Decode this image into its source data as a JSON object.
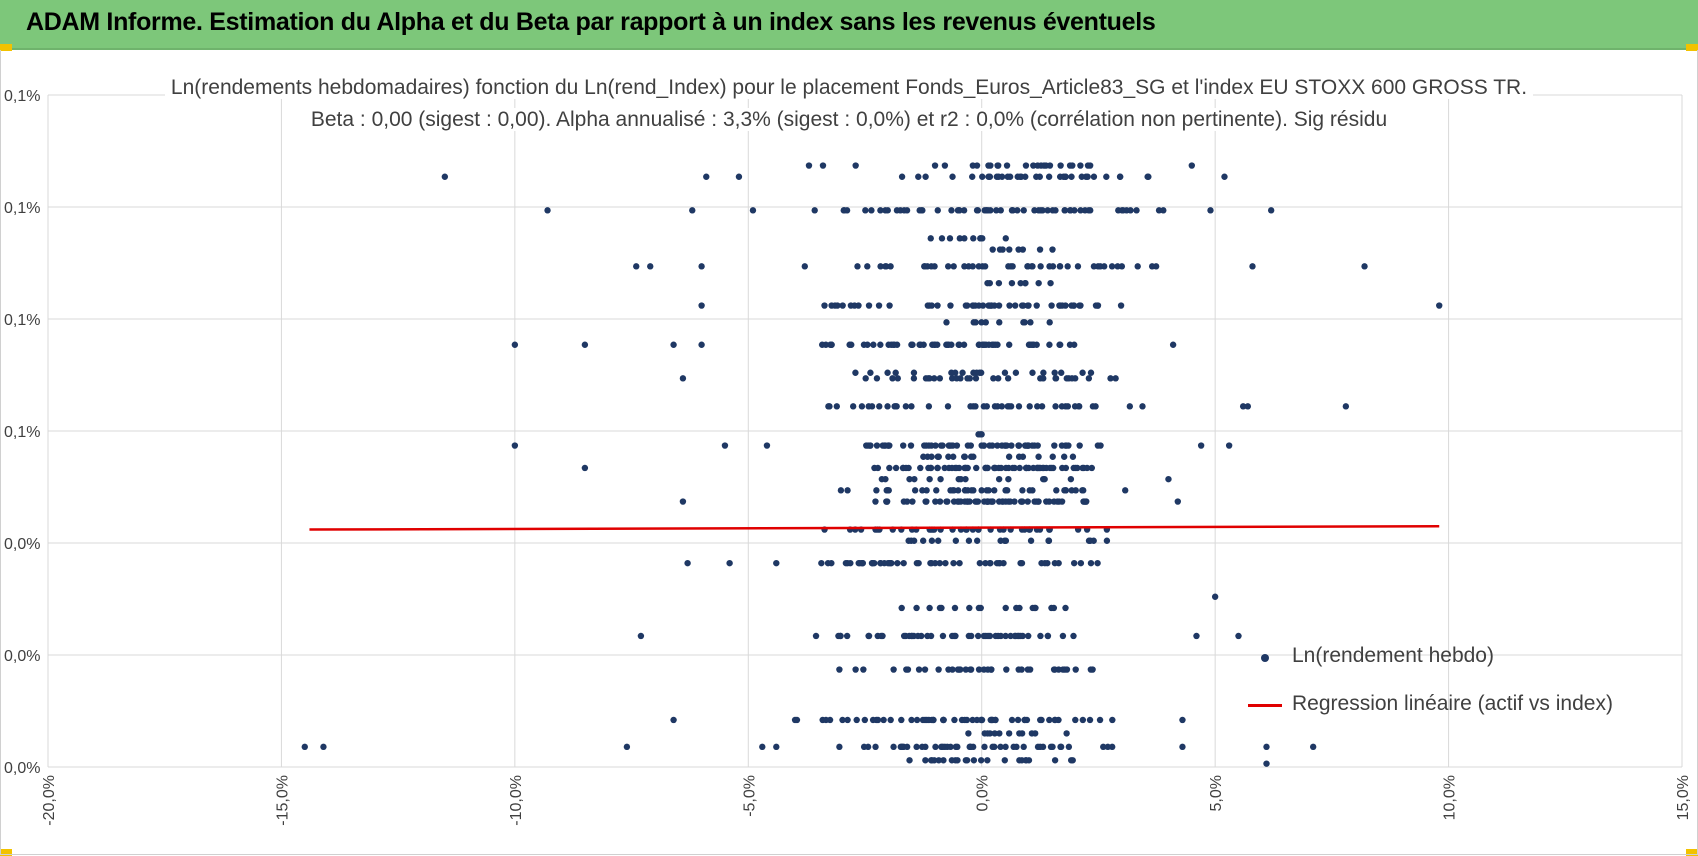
{
  "banner": {
    "title": "ADAM Informe. Estimation du Alpha et du Beta par rapport à un index sans les revenus éventuels",
    "color": "#7dc77a"
  },
  "chart_data": {
    "type": "scatter",
    "title_line1": "Ln(rendements hebdomadaires) fonction du Ln(rend_Index) pour le placement Fonds_Euros_Article83_SG et l'index EU STOXX 600 GROSS TR.",
    "title_line2": "Beta : 0,00 (sigest : 0,00). Alpha annualisé : 3,3% (sigest : 0,0%) et r2 : 0,0% (corrélation non pertinente). Sig résidu",
    "x_axis": {
      "min": -0.2,
      "max": 0.15,
      "step": 0.05,
      "tick_labels": [
        "-20,0%",
        "-15,0%",
        "-10,0%",
        "-5,0%",
        "0,0%",
        "5,0%",
        "10,0%",
        "15,0%"
      ]
    },
    "y_axis": {
      "min": 0,
      "max": 6,
      "step": 1,
      "tick_labels": [
        "0,0%",
        "0,0%",
        "0,0%",
        "0,1%",
        "0,1%",
        "0,1%",
        "0,1%"
      ]
    },
    "grid": true,
    "legend_position": "bottom-right",
    "series": [
      {
        "name": "Ln(rendement hebdo)",
        "kind": "points",
        "color": "#1f3864",
        "sparse_points": [
          [
            -0.145,
            0.18
          ],
          [
            -0.141,
            0.18
          ],
          [
            -0.115,
            5.27
          ],
          [
            -0.093,
            4.97
          ],
          [
            -0.1,
            3.77
          ],
          [
            -0.1,
            2.87
          ],
          [
            -0.085,
            3.77
          ],
          [
            -0.085,
            2.67
          ],
          [
            -0.076,
            0.18
          ],
          [
            -0.073,
            1.17
          ],
          [
            -0.074,
            4.47
          ],
          [
            -0.071,
            4.47
          ],
          [
            -0.066,
            3.77
          ],
          [
            -0.066,
            0.42
          ],
          [
            -0.064,
            2.37
          ],
          [
            -0.064,
            3.47
          ],
          [
            -0.063,
            1.82
          ],
          [
            -0.062,
            4.97
          ],
          [
            -0.06,
            3.77
          ],
          [
            -0.06,
            4.12
          ],
          [
            -0.06,
            4.47
          ],
          [
            -0.059,
            5.27
          ],
          [
            -0.054,
            1.82
          ],
          [
            -0.052,
            5.27
          ],
          [
            -0.055,
            2.87
          ],
          [
            -0.049,
            4.97
          ],
          [
            -0.047,
            0.18
          ],
          [
            -0.044,
            0.18
          ],
          [
            -0.046,
            2.87
          ],
          [
            -0.044,
            1.82
          ],
          [
            -0.037,
            5.37
          ],
          [
            -0.034,
            5.37
          ],
          [
            -0.027,
            5.37
          ],
          [
            0.045,
            5.37
          ],
          [
            0.052,
            5.27
          ],
          [
            0.049,
            4.97
          ],
          [
            0.053,
            2.87
          ],
          [
            0.056,
            3.22
          ],
          [
            0.055,
            1.17
          ],
          [
            0.057,
            3.22
          ],
          [
            0.062,
            4.97
          ],
          [
            0.058,
            4.47
          ],
          [
            0.061,
            0.18
          ],
          [
            0.071,
            0.18
          ],
          [
            0.061,
            0.03
          ],
          [
            0.082,
            4.47
          ],
          [
            0.098,
            4.12
          ],
          [
            0.078,
            3.22
          ],
          [
            0.05,
            1.52
          ],
          [
            0.046,
            1.17
          ],
          [
            0.043,
            0.18
          ],
          [
            0.043,
            0.42
          ],
          [
            0.042,
            2.37
          ],
          [
            0.047,
            2.87
          ],
          [
            0.041,
            3.77
          ],
          [
            0.04,
            2.57
          ]
        ],
        "dense_rows": [
          {
            "y": 5.37,
            "x_range": [
              -0.01,
              0.026
            ],
            "count": 22
          },
          {
            "y": 5.27,
            "x_range": [
              -0.022,
              0.043
            ],
            "count": 34
          },
          {
            "y": 4.97,
            "x_range": [
              -0.036,
              0.04
            ],
            "count": 60
          },
          {
            "y": 4.72,
            "x_range": [
              -0.011,
              0.009
            ],
            "count": 10
          },
          {
            "y": 4.62,
            "x_range": [
              -0.006,
              0.018
            ],
            "count": 8
          },
          {
            "y": 4.47,
            "x_range": [
              -0.038,
              0.04
            ],
            "count": 44
          },
          {
            "y": 4.32,
            "x_range": [
              -0.011,
              0.017
            ],
            "count": 9
          },
          {
            "y": 4.12,
            "x_range": [
              -0.036,
              0.034
            ],
            "count": 50
          },
          {
            "y": 3.97,
            "x_range": [
              -0.014,
              0.019
            ],
            "count": 10
          },
          {
            "y": 3.77,
            "x_range": [
              -0.039,
              0.027
            ],
            "count": 56
          },
          {
            "y": 3.52,
            "x_range": [
              -0.03,
              0.026
            ],
            "count": 20
          },
          {
            "y": 3.47,
            "x_range": [
              -0.029,
              0.033
            ],
            "count": 30
          },
          {
            "y": 3.22,
            "x_range": [
              -0.037,
              0.038
            ],
            "count": 42
          },
          {
            "y": 2.97,
            "x_range": [
              -0.001,
              0.001
            ],
            "count": 3
          },
          {
            "y": 2.87,
            "x_range": [
              -0.026,
              0.027
            ],
            "count": 58
          },
          {
            "y": 2.77,
            "x_range": [
              -0.025,
              0.024
            ],
            "count": 18
          },
          {
            "y": 2.67,
            "x_range": [
              -0.024,
              0.026
            ],
            "count": 64
          },
          {
            "y": 2.57,
            "x_range": [
              -0.026,
              0.021
            ],
            "count": 14
          },
          {
            "y": 2.47,
            "x_range": [
              -0.039,
              0.032
            ],
            "count": 40
          },
          {
            "y": 2.37,
            "x_range": [
              -0.024,
              0.027
            ],
            "count": 58
          },
          {
            "y": 2.12,
            "x_range": [
              -0.034,
              0.027
            ],
            "count": 38
          },
          {
            "y": 2.02,
            "x_range": [
              -0.018,
              0.028
            ],
            "count": 20
          },
          {
            "y": 1.82,
            "x_range": [
              -0.039,
              0.026
            ],
            "count": 52
          },
          {
            "y": 1.42,
            "x_range": [
              -0.021,
              0.019
            ],
            "count": 18
          },
          {
            "y": 1.17,
            "x_range": [
              -0.041,
              0.027
            ],
            "count": 48
          },
          {
            "y": 0.87,
            "x_range": [
              -0.031,
              0.024
            ],
            "count": 36
          },
          {
            "y": 0.42,
            "x_range": [
              -0.04,
              0.029
            ],
            "count": 58
          },
          {
            "y": 0.3,
            "x_range": [
              -0.013,
              0.019
            ],
            "count": 12
          },
          {
            "y": 0.18,
            "x_range": [
              -0.037,
              0.031
            ],
            "count": 44
          },
          {
            "y": 0.06,
            "x_range": [
              -0.016,
              0.02
            ],
            "count": 24
          }
        ]
      },
      {
        "name": "Regression linéaire (actif vs index)",
        "kind": "line",
        "color": "#e00000",
        "x": [
          -0.144,
          0.098
        ],
        "y": [
          2.12,
          2.15
        ]
      }
    ]
  }
}
